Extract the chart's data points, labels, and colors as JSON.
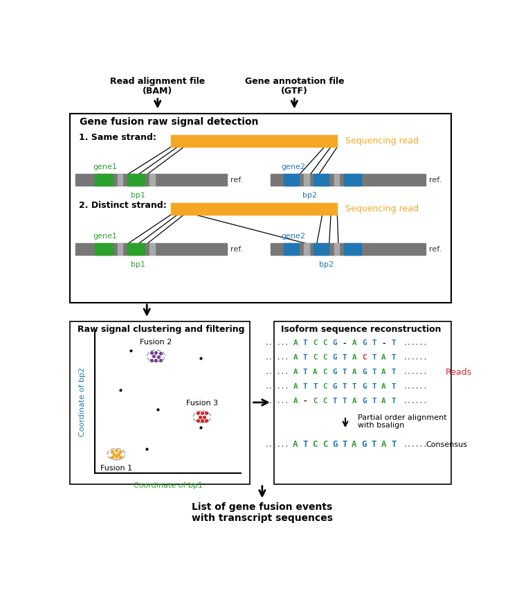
{
  "title_top1": "Read alignment file",
  "title_top1b": "(BAM)",
  "title_top2": "Gene annotation file",
  "title_top2b": "(GTF)",
  "box1_title": "Gene fusion raw signal detection",
  "strand1_label": "1. Same strand:",
  "strand2_label": "2. Distinct strand:",
  "seq_read_label": "Sequencing read",
  "gene1_label": "gene1",
  "gene2_label": "gene2",
  "ref_label": "ref.",
  "bp1_label": "bp1",
  "bp2_label": "bp2",
  "box2_title": "Raw signal clustering and filtering",
  "box3_title": "Isoform sequence reconstruction",
  "coord_bp1": "Coordinate of bp1",
  "coord_bp2": "Coordinate of bp2",
  "fusion1_label": "Fusion 1",
  "fusion2_label": "Fusion 2",
  "fusion3_label": "Fusion 3",
  "reads_label": "Reads",
  "poa_label": "Partial order alignment\nwith bsalign",
  "consensus_label": "Consensus",
  "final_label": "List of gene fusion events\nwith transcript sequences",
  "orange_color": "#F5A623",
  "green_color": "#2CA02C",
  "blue_color": "#1F77B4",
  "gray_color": "#555555",
  "purple_color": "#7B3F9E",
  "red_color": "#D62728",
  "orange_dots": "#F5A623",
  "seq_rows": [
    {
      "chars": [
        "A",
        "T",
        "C",
        "C",
        "G",
        "-",
        "A",
        "G",
        "T",
        "-",
        "T"
      ],
      "colors": [
        "green",
        "blue",
        "green",
        "green",
        "blue",
        "black",
        "green",
        "blue",
        "blue",
        "black",
        "blue"
      ]
    },
    {
      "chars": [
        "A",
        "T",
        "C",
        "C",
        "G",
        "T",
        "A",
        "C",
        "T",
        "A",
        "T"
      ],
      "colors": [
        "green",
        "blue",
        "green",
        "green",
        "blue",
        "blue",
        "green",
        "red",
        "blue",
        "green",
        "blue"
      ]
    },
    {
      "chars": [
        "A",
        "T",
        "A",
        "C",
        "G",
        "T",
        "A",
        "G",
        "T",
        "A",
        "T"
      ],
      "colors": [
        "green",
        "blue",
        "green",
        "green",
        "blue",
        "blue",
        "green",
        "blue",
        "blue",
        "green",
        "blue"
      ]
    },
    {
      "chars": [
        "A",
        "T",
        "T",
        "C",
        "G",
        "T",
        "T",
        "G",
        "T",
        "A",
        "T"
      ],
      "colors": [
        "green",
        "blue",
        "blue",
        "green",
        "blue",
        "blue",
        "blue",
        "blue",
        "blue",
        "green",
        "blue"
      ]
    },
    {
      "chars": [
        "A",
        "-",
        "C",
        "C",
        "T",
        "T",
        "A",
        "G",
        "T",
        "A",
        "T"
      ],
      "colors": [
        "green",
        "black",
        "green",
        "green",
        "blue",
        "blue",
        "green",
        "blue",
        "blue",
        "green",
        "blue"
      ]
    }
  ],
  "consensus_chars": [
    "A",
    "T",
    "C",
    "C",
    "G",
    "T",
    "A",
    "G",
    "T",
    "A",
    "T"
  ],
  "consensus_colors": [
    "green",
    "blue",
    "green",
    "green",
    "blue",
    "blue",
    "green",
    "blue",
    "blue",
    "green",
    "blue"
  ]
}
